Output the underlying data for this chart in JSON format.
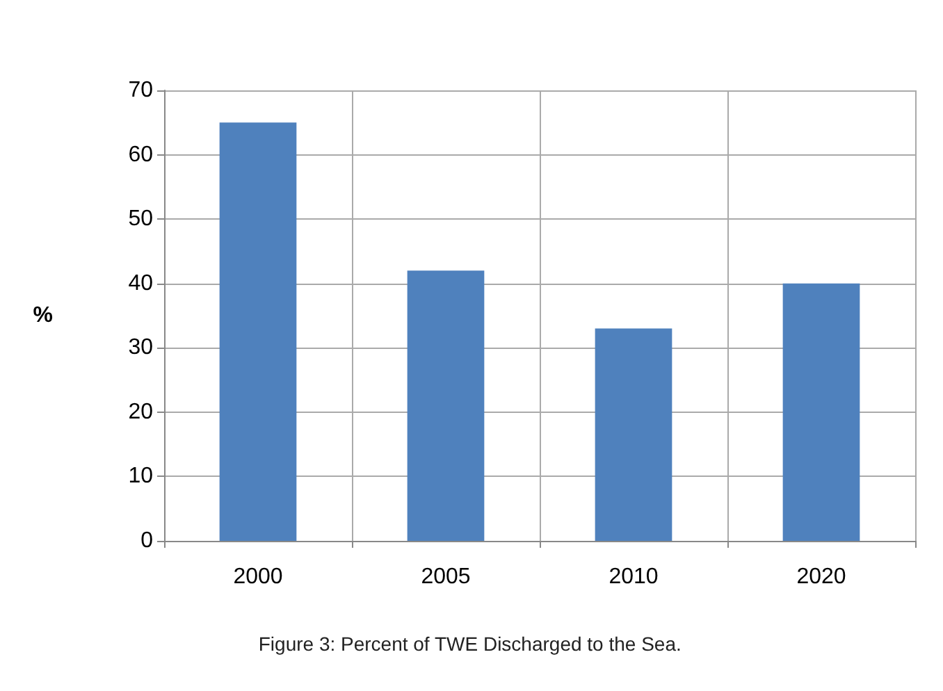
{
  "chart_data": {
    "type": "bar",
    "ylabel": "%",
    "categories": [
      "2000",
      "2005",
      "2010",
      "2020"
    ],
    "values": [
      65,
      42,
      33,
      40
    ],
    "color": "#4f81bd",
    "ylim": [
      0,
      70
    ],
    "yticks": [
      0,
      10,
      20,
      30,
      40,
      50,
      60,
      70
    ],
    "grid": true,
    "annotations": [
      "Figure 3: Percent of TWE Discharged to the Sea."
    ]
  }
}
